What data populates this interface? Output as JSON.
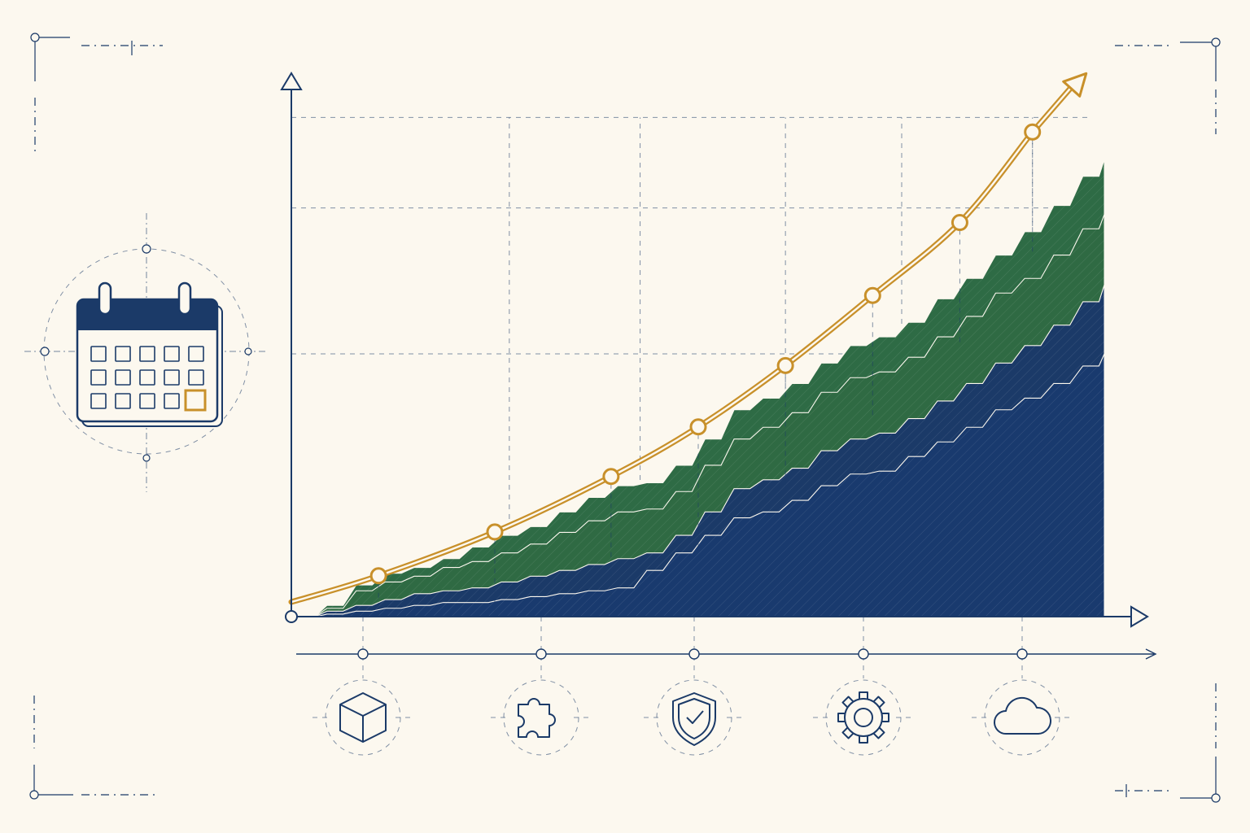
{
  "chart_data": {
    "type": "area",
    "stacked": true,
    "grid": true,
    "legend": "none",
    "x": [
      0,
      1,
      2,
      3,
      4,
      5,
      6,
      7,
      8,
      9,
      10,
      11,
      12,
      13,
      14,
      15,
      16,
      17,
      18,
      19,
      20,
      21,
      22,
      23,
      24,
      25,
      26,
      27,
      28
    ],
    "series": [
      {
        "values": [
          0,
          0.1,
          0.2,
          0.3,
          0.4,
          0.5,
          0.5,
          0.6,
          0.7,
          0.8,
          0.9,
          1.0,
          1.6,
          2.2,
          2.8,
          3.4,
          3.6,
          4.0,
          4.5,
          4.9,
          5.0,
          5.5,
          6.0,
          6.5,
          7.1,
          7.5,
          8.0,
          8.6,
          9.1
        ],
        "color": "#193a6e"
      },
      {
        "values": [
          0,
          0.1,
          0.2,
          0.3,
          0.4,
          0.4,
          0.5,
          0.6,
          0.7,
          0.8,
          0.9,
          1.0,
          0.6,
          0.6,
          0.8,
          1.0,
          1.1,
          1.1,
          1.2,
          1.2,
          1.3,
          1.3,
          1.4,
          1.5,
          1.6,
          1.8,
          2.0,
          2.2,
          2.4
        ],
        "color": "#1b3a68"
      },
      {
        "values": [
          0,
          0.1,
          0.5,
          0.6,
          0.6,
          0.8,
          0.9,
          1.0,
          1.1,
          1.3,
          1.5,
          1.6,
          1.5,
          1.5,
          1.6,
          1.7,
          1.8,
          1.9,
          2.0,
          2.1,
          2.1,
          2.1,
          2.2,
          2.3,
          2.4,
          2.3,
          2.4,
          2.5,
          2.4
        ],
        "color": "#2f6a43"
      },
      {
        "values": [
          0,
          0.1,
          0.2,
          0.3,
          0.3,
          0.3,
          0.5,
          0.6,
          0.6,
          0.7,
          0.8,
          0.9,
          0.9,
          0.9,
          0.9,
          1.0,
          1.0,
          1.0,
          1.0,
          1.1,
          1.2,
          1.2,
          1.3,
          1.3,
          1.3,
          1.6,
          1.7,
          1.8,
          1.9
        ],
        "color": "#2e6b45"
      }
    ],
    "trend": {
      "x": [
        0,
        3,
        7,
        11,
        14,
        17,
        20,
        23,
        25.5
      ],
      "y": [
        0.5,
        1.4,
        2.9,
        4.8,
        6.5,
        8.6,
        11.0,
        13.5,
        16.6
      ],
      "color": "#c8902a"
    },
    "xlim": [
      0,
      28
    ],
    "ylim": [
      0,
      17.5
    ],
    "gridlines_y": [
      9.0,
      14.0,
      17.1
    ],
    "gridlines_x": [
      7.5,
      12.0,
      17.0,
      21.0,
      25.5
    ]
  },
  "icons": {
    "calendar": "calendar-icon",
    "milestones": [
      "cube-icon",
      "puzzle-icon",
      "shield-check-icon",
      "gear-icon",
      "cloud-icon"
    ]
  },
  "colors": {
    "background": "#fcf8ef",
    "navy": "#1b3a68",
    "green": "#2e6b45",
    "gold": "#c8902a"
  }
}
